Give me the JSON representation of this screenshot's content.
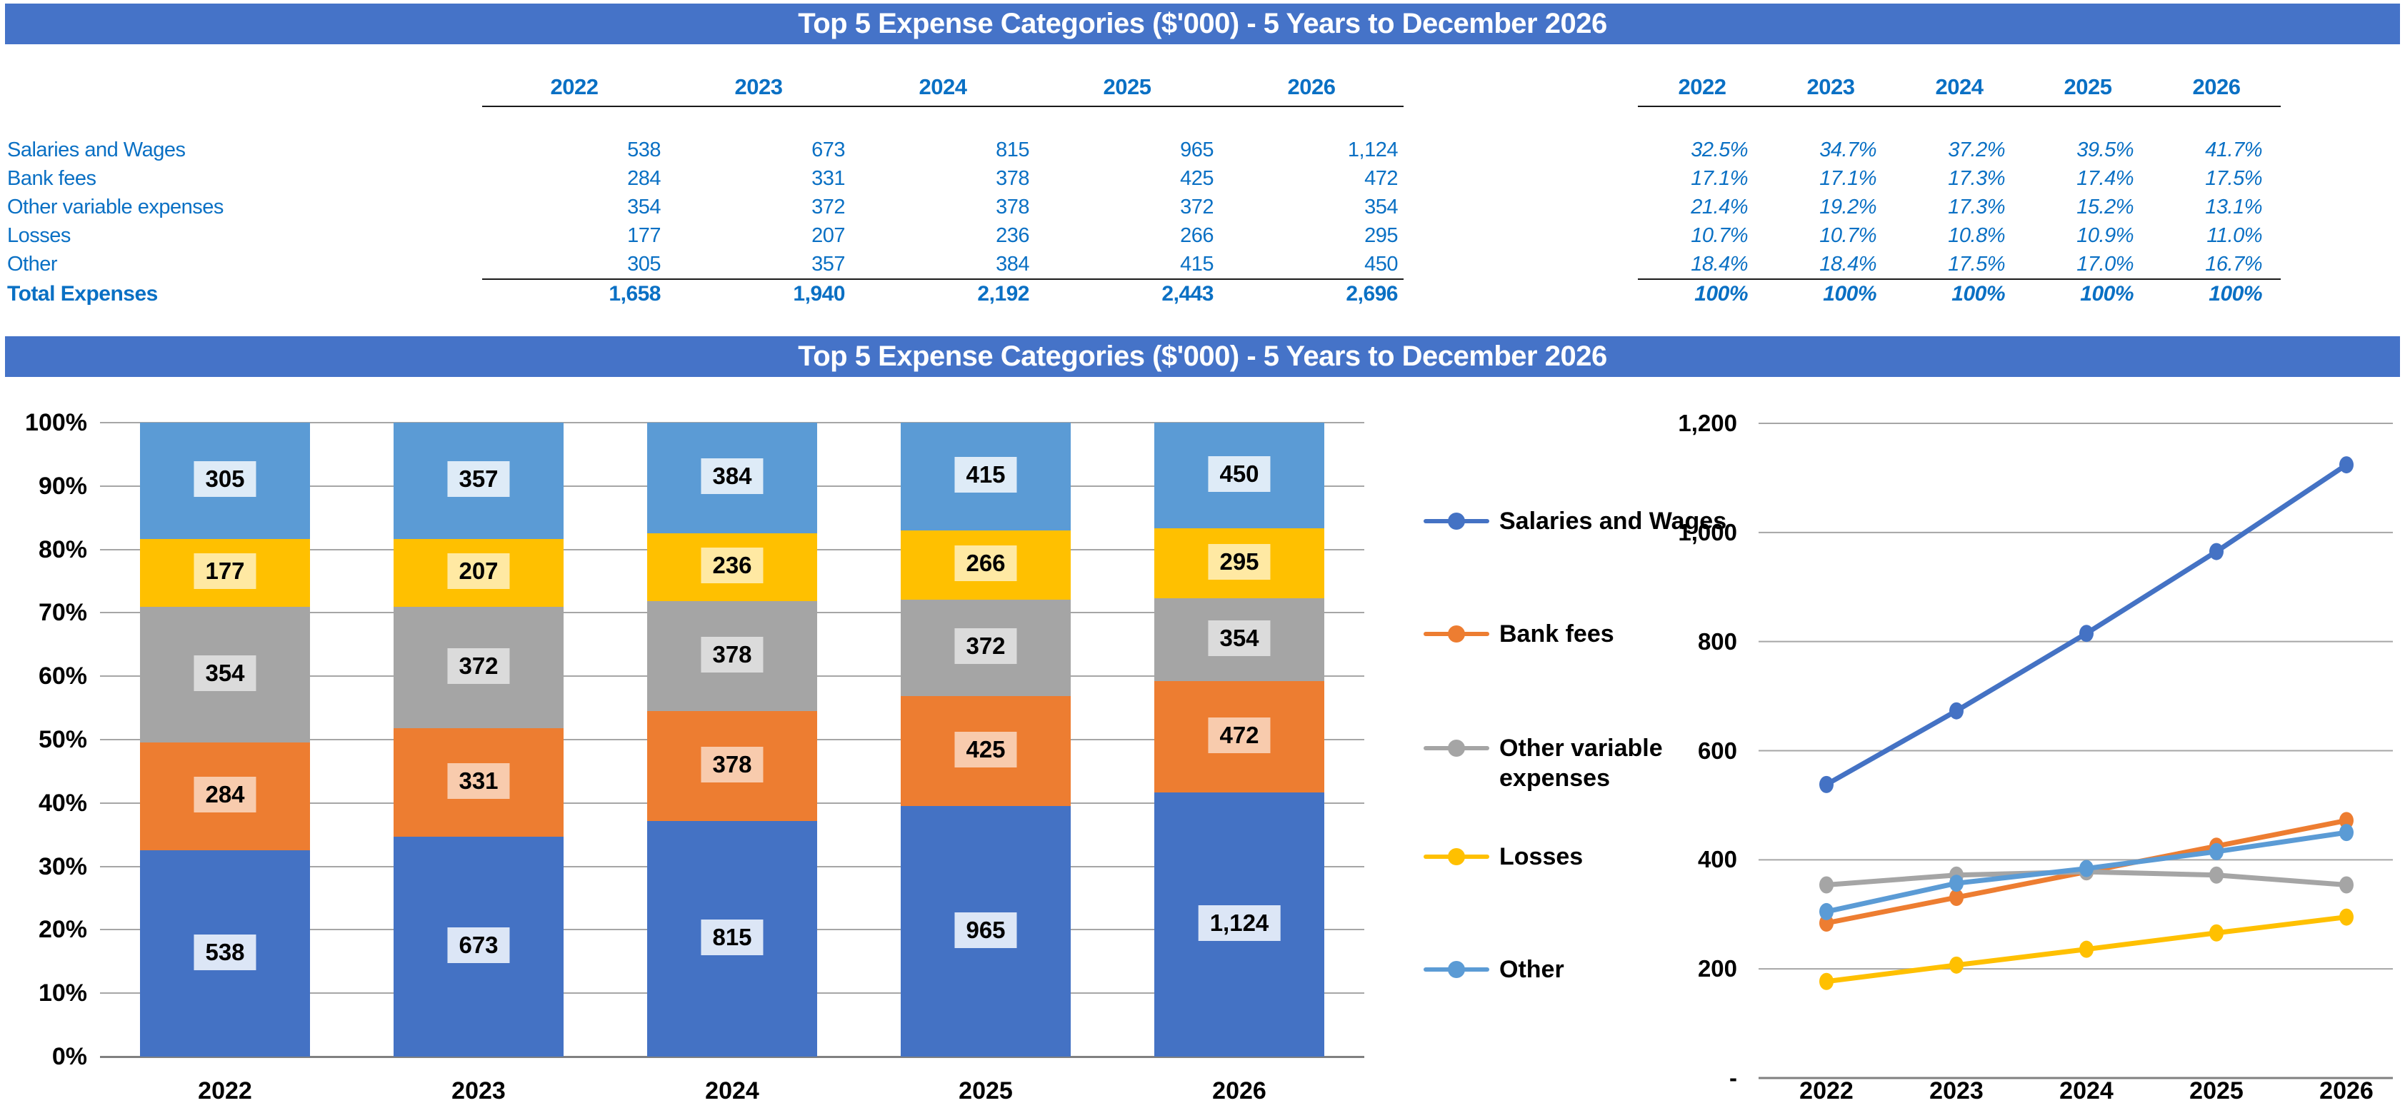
{
  "title": "Top 5 Expense Categories ($'000) - 5 Years to December 2026",
  "chart_section_title": "Top 5 Expense Categories ($'000) - 5 Years to December 2026",
  "years": [
    "2022",
    "2023",
    "2024",
    "2025",
    "2026"
  ],
  "expense_table": {
    "rows": [
      {
        "label": "Salaries and Wages",
        "values": [
          "538",
          "673",
          "815",
          "965",
          "1,124"
        ],
        "pcts": [
          "32.5%",
          "34.7%",
          "37.2%",
          "39.5%",
          "41.7%"
        ]
      },
      {
        "label": "Bank fees",
        "values": [
          "284",
          "331",
          "378",
          "425",
          "472"
        ],
        "pcts": [
          "17.1%",
          "17.1%",
          "17.3%",
          "17.4%",
          "17.5%"
        ]
      },
      {
        "label": "Other variable expenses",
        "values": [
          "354",
          "372",
          "378",
          "372",
          "354"
        ],
        "pcts": [
          "21.4%",
          "19.2%",
          "17.3%",
          "15.2%",
          "13.1%"
        ]
      },
      {
        "label": "Losses",
        "values": [
          "177",
          "207",
          "236",
          "266",
          "295"
        ],
        "pcts": [
          "10.7%",
          "10.7%",
          "10.8%",
          "10.9%",
          "11.0%"
        ]
      },
      {
        "label": "Other",
        "values": [
          "305",
          "357",
          "384",
          "415",
          "450"
        ],
        "pcts": [
          "18.4%",
          "18.4%",
          "17.5%",
          "17.0%",
          "16.7%"
        ]
      }
    ],
    "total": {
      "label": "Total Expenses",
      "values": [
        "1,658",
        "1,940",
        "2,192",
        "2,443",
        "2,696"
      ],
      "pcts": [
        "100%",
        "100%",
        "100%",
        "100%",
        "100%"
      ]
    }
  },
  "chart_data": [
    {
      "type": "bar",
      "stacked": "100%",
      "title": "Top 5 Expense Categories ($'000) - 5 Years to December 2026",
      "categories": [
        "2022",
        "2023",
        "2024",
        "2025",
        "2026"
      ],
      "series": [
        {
          "name": "Salaries and Wages",
          "color": "#4472C4",
          "label_bg": "#DCE6F6",
          "values": [
            538,
            673,
            815,
            965,
            1124
          ],
          "labels": [
            "538",
            "673",
            "815",
            "965",
            "1,124"
          ],
          "pcts": [
            32.5,
            34.7,
            37.2,
            39.5,
            41.7
          ]
        },
        {
          "name": "Bank fees",
          "color": "#ED7D31",
          "label_bg": "#F8CBAD",
          "values": [
            284,
            331,
            378,
            425,
            472
          ],
          "labels": [
            "284",
            "331",
            "378",
            "425",
            "472"
          ],
          "pcts": [
            17.1,
            17.1,
            17.3,
            17.4,
            17.5
          ]
        },
        {
          "name": "Other variable expenses",
          "color": "#A5A5A5",
          "label_bg": "#DBDBDB",
          "values": [
            354,
            372,
            378,
            372,
            354
          ],
          "labels": [
            "354",
            "372",
            "378",
            "372",
            "354"
          ],
          "pcts": [
            21.4,
            19.2,
            17.3,
            15.2,
            13.1
          ]
        },
        {
          "name": "Losses",
          "color": "#FFC000",
          "label_bg": "#FFE9A3",
          "values": [
            177,
            207,
            236,
            266,
            295
          ],
          "labels": [
            "177",
            "207",
            "236",
            "266",
            "295"
          ],
          "pcts": [
            10.7,
            10.7,
            10.8,
            10.9,
            11.0
          ]
        },
        {
          "name": "Other",
          "color": "#5B9BD5",
          "label_bg": "#DEEBF7",
          "values": [
            305,
            357,
            384,
            415,
            450
          ],
          "labels": [
            "305",
            "357",
            "384",
            "415",
            "450"
          ],
          "pcts": [
            18.4,
            18.4,
            17.5,
            17.0,
            16.7
          ]
        }
      ],
      "y_ticks": [
        "0%",
        "10%",
        "20%",
        "30%",
        "40%",
        "50%",
        "60%",
        "70%",
        "80%",
        "90%",
        "100%"
      ],
      "ylim": [
        0,
        100
      ],
      "grid": true,
      "legend_position": "none"
    },
    {
      "type": "line",
      "x": [
        "2022",
        "2023",
        "2024",
        "2025",
        "2026"
      ],
      "series": [
        {
          "name": "Salaries and Wages",
          "color": "#4472C4",
          "values": [
            538,
            673,
            815,
            965,
            1124
          ]
        },
        {
          "name": "Bank fees",
          "color": "#ED7D31",
          "values": [
            284,
            331,
            378,
            425,
            472
          ]
        },
        {
          "name": "Other variable expenses",
          "color": "#A5A5A5",
          "values": [
            354,
            372,
            378,
            372,
            354
          ]
        },
        {
          "name": "Losses",
          "color": "#FFC000",
          "values": [
            177,
            207,
            236,
            266,
            295
          ]
        },
        {
          "name": "Other",
          "color": "#5B9BD5",
          "values": [
            305,
            357,
            384,
            415,
            450
          ]
        }
      ],
      "y_ticks": [
        "-",
        "200",
        "400",
        "600",
        "800",
        "1,000",
        "1,200"
      ],
      "ylim": [
        0,
        1200
      ],
      "grid": true,
      "legend_position": "left"
    }
  ],
  "colors": {
    "title_bar_bg": "#4573C8",
    "title_text": "#FFFFFF",
    "table_text": "#0A70C4",
    "gridline": "#A6A6A6",
    "axis_line": "#808080",
    "series": [
      "#4472C4",
      "#ED7D31",
      "#A5A5A5",
      "#FFC000",
      "#5B9BD5"
    ]
  }
}
